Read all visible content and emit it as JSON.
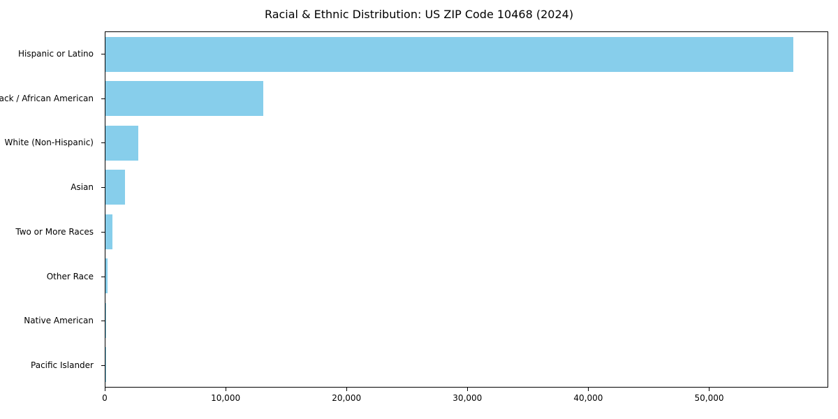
{
  "chart_data": {
    "type": "bar",
    "orientation": "horizontal",
    "title": "Racial & Ethnic Distribution: US ZIP Code 10468 (2024)",
    "categories": [
      "Hispanic or Latino",
      "Black / African American",
      "White (Non-Hispanic)",
      "Asian",
      "Two or More Races",
      "Other Race",
      "Native American",
      "Pacific Islander"
    ],
    "values": [
      57000,
      13100,
      2700,
      1600,
      600,
      180,
      60,
      15
    ],
    "xlabel": "",
    "ylabel": "",
    "xlim": [
      0,
      59850
    ],
    "xticks": {
      "values": [
        0,
        10000,
        20000,
        30000,
        40000,
        50000
      ],
      "labels": [
        "0",
        "10,000",
        "20,000",
        "30,000",
        "40,000",
        "50,000"
      ]
    },
    "grid": false,
    "legend": "none",
    "bar_color": "#87CEEB",
    "background_color": "#ffffff",
    "frame_color": "#000000"
  }
}
